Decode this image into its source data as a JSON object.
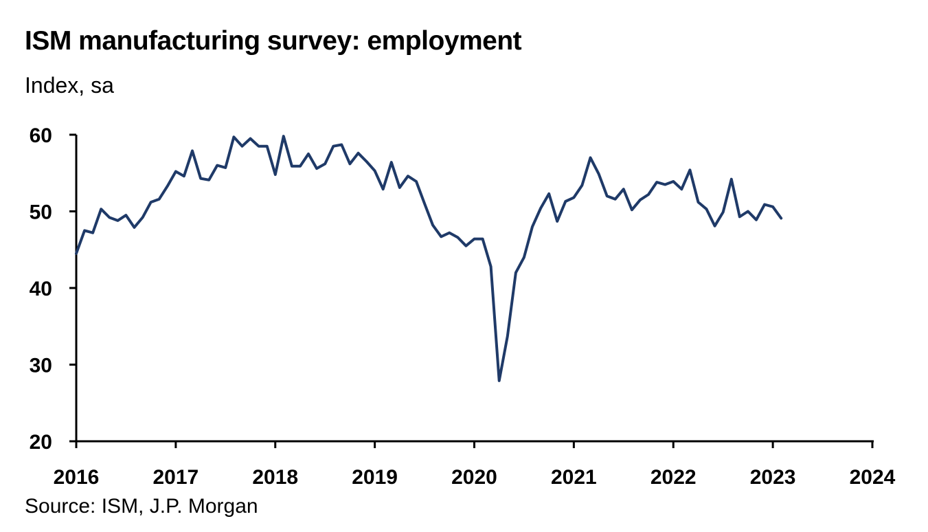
{
  "chart_data": {
    "type": "line",
    "title": "ISM manufacturing survey: employment",
    "subtitle": "Index, sa",
    "source": "Source: ISM, J.P. Morgan",
    "xlabel": "",
    "ylabel": "",
    "xlim": [
      2016,
      2024
    ],
    "ylim": [
      20,
      60
    ],
    "yticks": [
      20,
      30,
      40,
      50,
      60
    ],
    "xticks": [
      "2016",
      "2017",
      "2018",
      "2019",
      "2020",
      "2021",
      "2022",
      "2023",
      "2024"
    ],
    "grid": false,
    "legend": "none",
    "colors": {
      "line": "#1f3a68",
      "axis": "#000000"
    },
    "series": [
      {
        "start": "2016-01",
        "frequency": "monthly",
        "values": [
          44.5,
          47.5,
          47.2,
          50.3,
          49.2,
          48.8,
          49.5,
          47.9,
          49.2,
          51.2,
          51.6,
          53.3,
          55.2,
          54.6,
          57.9,
          54.3,
          54.1,
          56.0,
          55.7,
          59.7,
          58.5,
          59.5,
          58.5,
          58.5,
          54.8,
          59.8,
          55.9,
          55.9,
          57.5,
          55.6,
          56.2,
          58.5,
          58.7,
          56.2,
          57.6,
          56.5,
          55.3,
          52.9,
          56.4,
          53.1,
          54.6,
          53.9,
          51.0,
          48.2,
          46.7,
          47.2,
          46.6,
          45.5,
          46.4,
          46.4,
          42.8,
          27.9,
          33.7,
          42.0,
          44.0,
          48.0,
          50.4,
          52.3,
          48.7,
          51.3,
          51.8,
          53.4,
          57.0,
          54.9,
          52.0,
          51.6,
          52.9,
          50.2,
          51.5,
          52.2,
          53.8,
          53.5,
          53.9,
          52.9,
          55.4,
          51.2,
          50.3,
          48.1,
          49.9,
          54.2,
          49.3,
          50.0,
          48.9,
          50.9,
          50.6,
          49.1
        ]
      }
    ]
  }
}
